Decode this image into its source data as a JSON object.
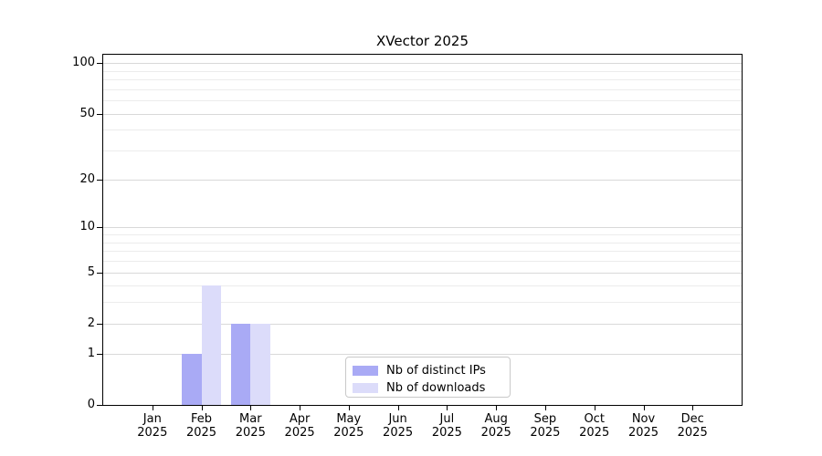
{
  "chart_data": {
    "type": "bar",
    "title": "XVector 2025",
    "categories": [
      "Jan 2025",
      "Feb 2025",
      "Mar 2025",
      "Apr 2025",
      "May 2025",
      "Jun 2025",
      "Jul 2025",
      "Aug 2025",
      "Sep 2025",
      "Oct 2025",
      "Nov 2025",
      "Dec 2025"
    ],
    "series": [
      {
        "name": "Nb of distinct IPs",
        "color": "#a9aaf5",
        "values": [
          0,
          1,
          2,
          0,
          0,
          0,
          0,
          0,
          0,
          0,
          0,
          0
        ]
      },
      {
        "name": "Nb of downloads",
        "color": "#dcdcfa",
        "values": [
          0,
          4,
          2,
          0,
          0,
          0,
          0,
          0,
          0,
          0,
          0,
          0
        ]
      }
    ],
    "yscale": "log1p",
    "y_ticks": [
      0,
      1,
      2,
      5,
      10,
      20,
      50,
      100
    ],
    "y_minor_gridlines": [
      3,
      4,
      6,
      7,
      8,
      9,
      30,
      40,
      60,
      70,
      80,
      90
    ],
    "ylim": [
      0,
      112
    ],
    "bar_width_fraction": 0.4,
    "grid": true,
    "legend_position": "lower center",
    "colors": {
      "grid_major": "#d9d9d9",
      "grid_minor": "#ececec",
      "axis": "#000000",
      "text": "#000000",
      "background": "#ffffff"
    }
  }
}
